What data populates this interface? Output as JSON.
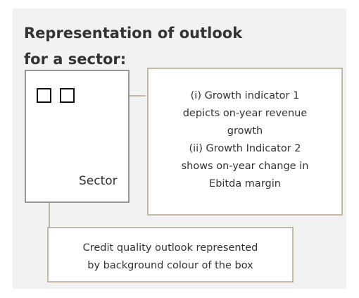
{
  "title": [
    "Representation of outlook",
    "for a sector:"
  ],
  "sector_label": "Sector",
  "indicator_note": [
    "(i) Growth indicator 1",
    "depicts on-year revenue",
    "growth",
    "(ii) Growth Indicator 2",
    "shows on-year change in",
    "Ebitda margin"
  ],
  "background_note": [
    "Credit quality outlook represented",
    "by background colour of the box"
  ]
}
